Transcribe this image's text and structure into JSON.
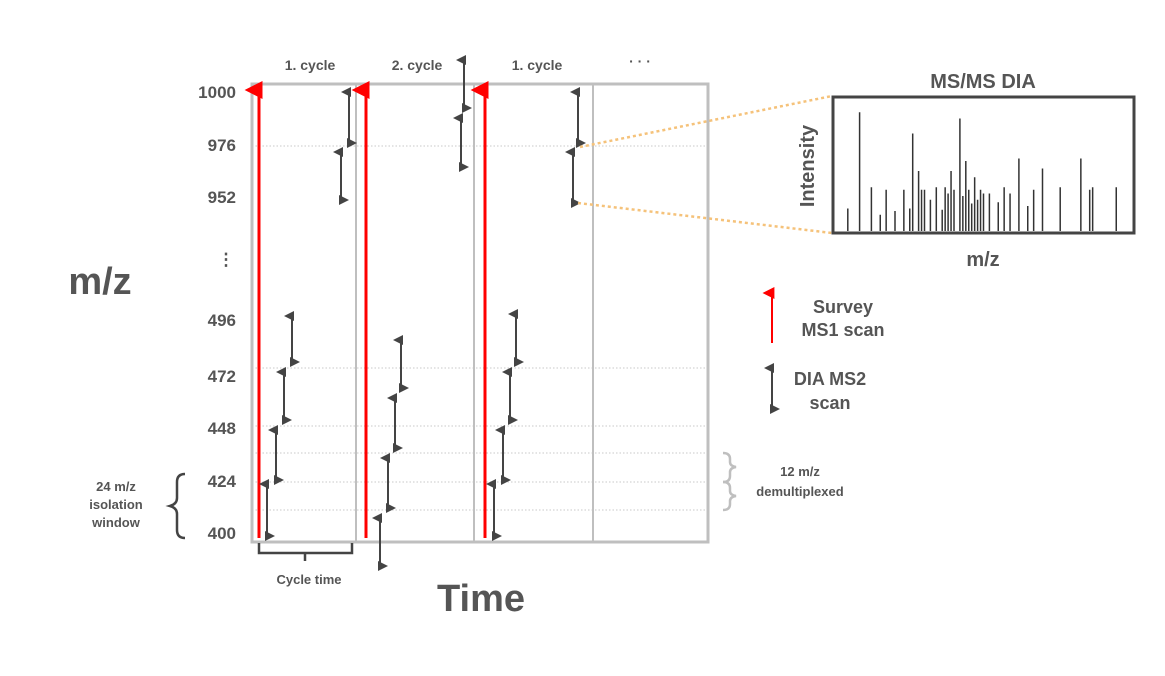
{
  "y_axis": {
    "label": "m/z",
    "ticks": [
      "1000",
      "976",
      "952",
      "⋮",
      "496",
      "472",
      "448",
      "424",
      "400"
    ]
  },
  "x_axis": {
    "label": "Time"
  },
  "cycles": [
    "1. cycle",
    "2. cycle",
    "1. cycle",
    "· · ·"
  ],
  "cycle_time_label": "Cycle time",
  "isolation_window_label": [
    "24 m/z",
    "isolation",
    "window"
  ],
  "demux_label": [
    "12 m/z",
    "demultiplexed"
  ],
  "legend": {
    "survey": [
      "Survey",
      "MS1 scan"
    ],
    "dia": [
      "DIA MS2",
      "scan"
    ]
  },
  "inset": {
    "title": "MS/MS DIA",
    "ylabel": "Intensity",
    "xlabel": "m/z"
  },
  "colors": {
    "survey_arrow": "#ff0000",
    "dia_arrow": "#444444",
    "frame": "#bfbfbf",
    "text": "#555555",
    "zoom_lines": "#f5c27a"
  },
  "spectrum_peaks": [
    [
      0.04,
      0.18
    ],
    [
      0.08,
      0.95
    ],
    [
      0.12,
      0.35
    ],
    [
      0.15,
      0.13
    ],
    [
      0.17,
      0.33
    ],
    [
      0.2,
      0.16
    ],
    [
      0.23,
      0.33
    ],
    [
      0.25,
      0.18
    ],
    [
      0.26,
      0.78
    ],
    [
      0.28,
      0.48
    ],
    [
      0.29,
      0.33
    ],
    [
      0.3,
      0.33
    ],
    [
      0.32,
      0.25
    ],
    [
      0.34,
      0.35
    ],
    [
      0.36,
      0.17
    ],
    [
      0.37,
      0.35
    ],
    [
      0.38,
      0.3
    ],
    [
      0.39,
      0.48
    ],
    [
      0.4,
      0.33
    ],
    [
      0.42,
      0.9
    ],
    [
      0.43,
      0.28
    ],
    [
      0.44,
      0.56
    ],
    [
      0.45,
      0.33
    ],
    [
      0.46,
      0.22
    ],
    [
      0.47,
      0.43
    ],
    [
      0.48,
      0.25
    ],
    [
      0.49,
      0.33
    ],
    [
      0.5,
      0.3
    ],
    [
      0.52,
      0.3
    ],
    [
      0.55,
      0.23
    ],
    [
      0.57,
      0.35
    ],
    [
      0.59,
      0.3
    ],
    [
      0.62,
      0.58
    ],
    [
      0.65,
      0.2
    ],
    [
      0.67,
      0.33
    ],
    [
      0.7,
      0.5
    ],
    [
      0.76,
      0.35
    ],
    [
      0.83,
      0.58
    ],
    [
      0.86,
      0.33
    ],
    [
      0.87,
      0.35
    ],
    [
      0.95,
      0.35
    ]
  ]
}
